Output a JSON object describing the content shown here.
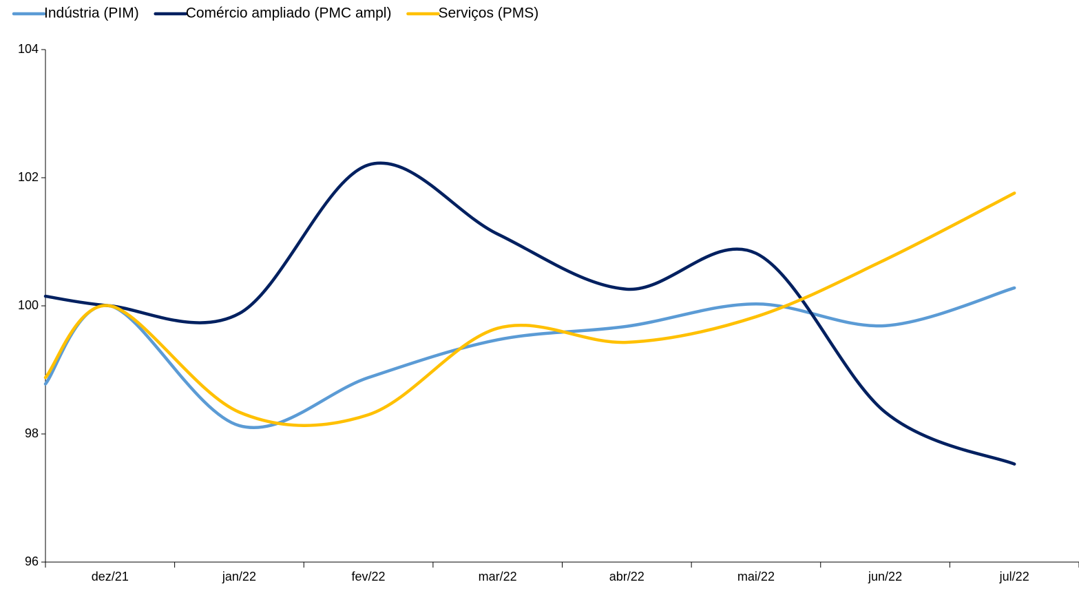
{
  "chart_data": {
    "type": "line",
    "categories": [
      null,
      "dez/21",
      "jan/22",
      "fev/22",
      "mar/22",
      "abr/22",
      "mai/22",
      "jun/22",
      "jul/22"
    ],
    "series": [
      {
        "name": "Indústria (PIM)",
        "color": "#5b9bd5",
        "values": [
          98.78,
          100.0,
          98.13,
          98.88,
          99.47,
          99.68,
          100.03,
          99.69,
          100.28
        ]
      },
      {
        "name": "Comércio ampliado (PMC ampl)",
        "color": "#002060",
        "values": [
          100.15,
          100.0,
          99.88,
          102.2,
          101.12,
          100.26,
          100.82,
          98.34,
          97.53
        ]
      },
      {
        "name": "Serviços (PMS)",
        "color": "#ffc000",
        "values": [
          98.88,
          100.0,
          98.34,
          98.3,
          99.65,
          99.43,
          99.83,
          100.72,
          101.76
        ]
      }
    ],
    "ylim": [
      96,
      104
    ],
    "yticks": [
      96,
      98,
      100,
      102,
      104
    ],
    "grid": false,
    "smooth": true,
    "legend": "top-left"
  }
}
